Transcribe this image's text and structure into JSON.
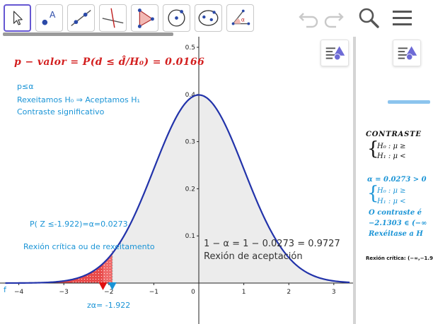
{
  "toolbar": {
    "tools": [
      {
        "name": "move-tool",
        "icon": "cursor-arrow-icon"
      },
      {
        "name": "point-tool",
        "icon": "point-icon",
        "label": "A"
      },
      {
        "name": "line-tool",
        "icon": "line-icon"
      },
      {
        "name": "perpendicular-tool",
        "icon": "perpendicular-line-icon"
      },
      {
        "name": "polygon-tool",
        "icon": "polygon-icon"
      },
      {
        "name": "circle-tool",
        "icon": "circle-center-icon"
      },
      {
        "name": "ellipse-tool",
        "icon": "ellipse-icon"
      },
      {
        "name": "angle-tool",
        "icon": "angle-icon",
        "label": "α"
      }
    ],
    "actions": [
      "undo-icon",
      "redo-icon",
      "search-icon",
      "menu-icon"
    ]
  },
  "graphics": {
    "pvalue": "p − valor = P(d ≤ d̂/H₀) = 0.0166",
    "status": [
      "p≤α",
      "Rexeitamos H₀ ⇒ Aceptamos H₁",
      "Contraste significativo"
    ],
    "prob_label": "P( Z ≤-1.922)=α=0.0273",
    "critical_region_label": "Rexión crítica ou de rexeitamento",
    "acceptance_formula": "1 − α = 1 − 0.0273 = 0.9727",
    "acceptance_label": "Rexión de aceptación",
    "z_alpha_label": "zα= -1.922",
    "function_label": "f",
    "x_ticks": [
      "−4",
      "−3",
      "−2",
      "−1",
      "0",
      "1",
      "2",
      "3"
    ],
    "y_ticks": [
      "0.1",
      "0.2",
      "0.3",
      "0.4",
      "0.5"
    ]
  },
  "chart_data": {
    "type": "area",
    "x_range": [
      -4.3,
      3.35
    ],
    "y_range": [
      0,
      0.5
    ],
    "z_alpha": -1.922,
    "d_hat": -2.1303,
    "colors": {
      "curve": "#2233aa",
      "acceptance": "#ececec",
      "critical": "#f06a6a",
      "pvalue": "#d32020",
      "text_blue": "#1a94d6"
    }
  },
  "right_panel": {
    "title": "CONTRASTE",
    "h0": "H₀ :   μ ≥",
    "h1": "H₁ :   μ <",
    "alpha": "α = 0.0273 > 0",
    "h0b": "H₀ :   μ ≥",
    "h1b": "H₁ :   μ <",
    "conclusion": "O contraste é",
    "range": "−2.1303 ∈ (−∞",
    "reject": "Rexéitase a H",
    "critical": "Rexión crítica: (−∞,−1.9"
  }
}
